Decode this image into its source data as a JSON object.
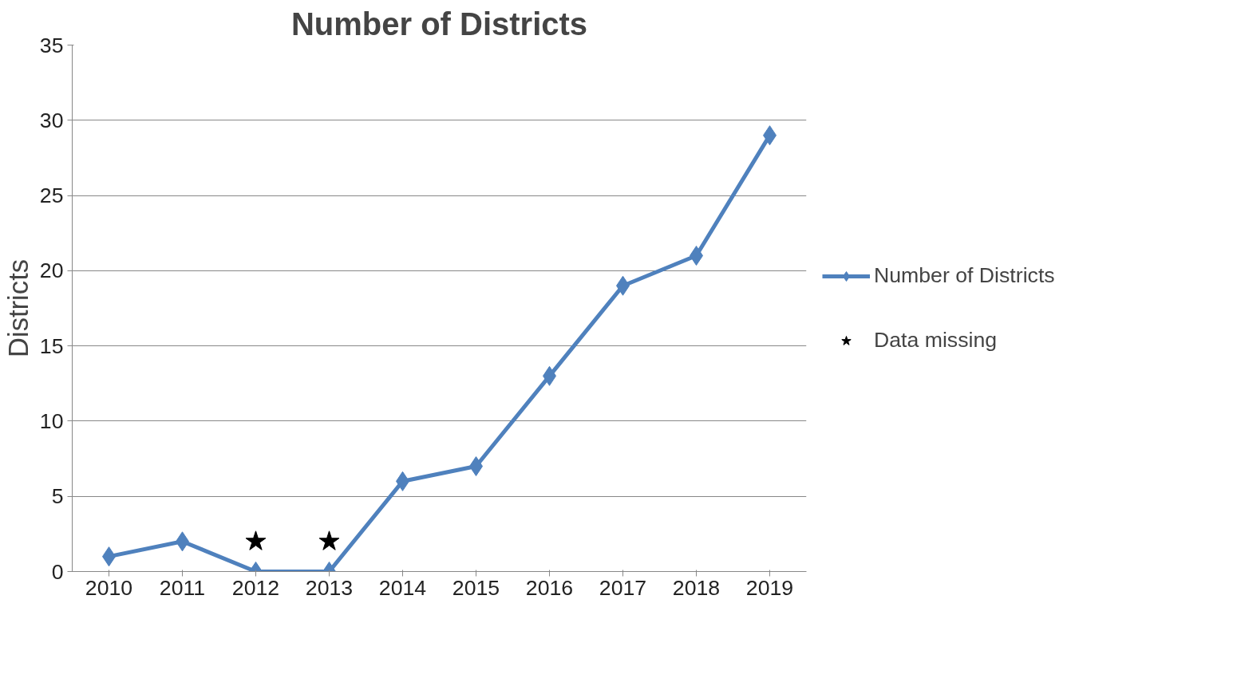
{
  "chart_data": {
    "type": "line",
    "title": "Number of Districts",
    "ylabel": "Districts",
    "categories": [
      "2010",
      "2011",
      "2012",
      "2013",
      "2014",
      "2015",
      "2016",
      "2017",
      "2018",
      "2019"
    ],
    "series": [
      {
        "name": "Number of Districts",
        "color": "#4f81bd",
        "marker": "diamond",
        "values": [
          1,
          2,
          0,
          0,
          6,
          7,
          13,
          19,
          21,
          29
        ]
      },
      {
        "name": "Data missing",
        "type": "scatter",
        "color": "#000000",
        "marker": "star",
        "values": [
          null,
          null,
          2,
          2,
          null,
          null,
          null,
          null,
          null,
          null
        ]
      }
    ],
    "ylim": [
      0,
      35
    ],
    "yticks": [
      0,
      5,
      10,
      15,
      20,
      25,
      30,
      35
    ],
    "grid": "y",
    "legend": "right"
  }
}
